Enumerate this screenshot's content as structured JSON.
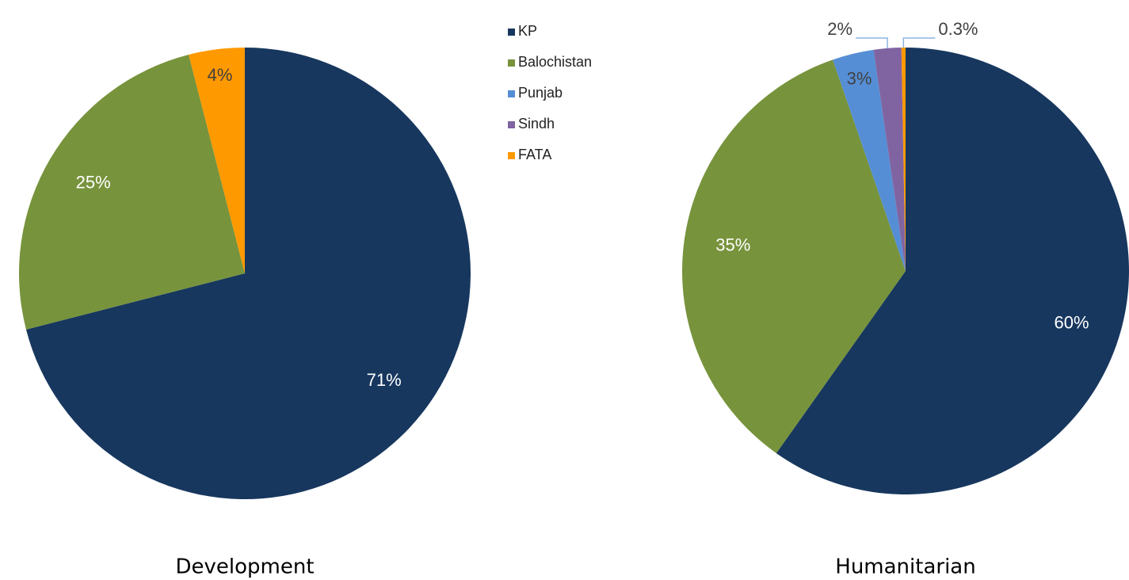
{
  "chart_data": [
    {
      "type": "pie",
      "title": "Development",
      "categories": [
        "KP",
        "Balochistan",
        "FATA"
      ],
      "values": [
        71,
        25,
        4
      ],
      "value_labels": [
        "71%",
        "25%",
        "4%"
      ],
      "colors": [
        "#17375e",
        "#77933c",
        "#ff9900"
      ]
    },
    {
      "type": "pie",
      "title": "Humanitarian",
      "categories": [
        "KP",
        "Balochistan",
        "Punjab",
        "Sindh",
        "FATA"
      ],
      "values": [
        60,
        35,
        3,
        2,
        0.3
      ],
      "value_labels": [
        "60%",
        "35%",
        "3%",
        "2%",
        "0.3%"
      ],
      "colors": [
        "#17375e",
        "#77933c",
        "#558ed5",
        "#8064a2",
        "#ff9900"
      ],
      "legend": true
    }
  ]
}
